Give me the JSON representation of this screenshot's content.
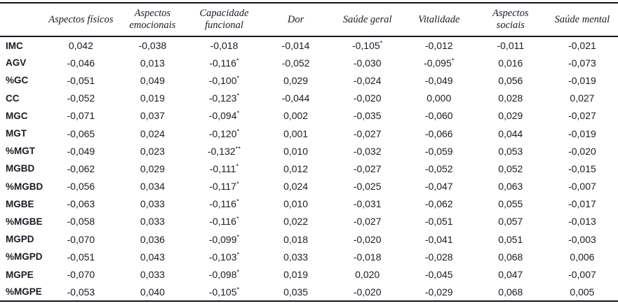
{
  "colors": {
    "text": "#1b1b26",
    "rule": "#15151f",
    "background": "#ffffff"
  },
  "table": {
    "corner_label": "",
    "columns": [
      "Aspectos físicos",
      "Aspectos emocionais",
      "Capacidade funcional",
      "Dor",
      "Saúde geral",
      "Vitalidade",
      "Aspectos sociais",
      "Saúde mental"
    ],
    "rows": [
      {
        "label": "IMC",
        "values": [
          "0,042",
          "-0,038",
          "-0,018",
          "-0,014",
          "-0,105*",
          "-0,012",
          "-0,011",
          "-0,021"
        ]
      },
      {
        "label": "AGV",
        "values": [
          "-0,046",
          "0,013",
          "-0,116*",
          "-0,052",
          "-0,030",
          "-0,095*",
          "0,016",
          "-0,073"
        ]
      },
      {
        "label": "%GC",
        "values": [
          "-0,051",
          "0,049",
          "-0,100*",
          "0,029",
          "-0,024",
          "-0,049",
          "0,056",
          "-0,019"
        ]
      },
      {
        "label": "CC",
        "values": [
          "-0,052",
          "0,019",
          "-0,123*",
          "-0,044",
          "-0,020",
          "0,000",
          "0,028",
          "0,027"
        ]
      },
      {
        "label": "MGC",
        "values": [
          "-0,071",
          "0,037",
          "-0,094*",
          "0,002",
          "-0,035",
          "-0,060",
          "0,029",
          "-0,027"
        ]
      },
      {
        "label": "MGT",
        "values": [
          "-0,065",
          "0,024",
          "-0,120*",
          "0,001",
          "-0,027",
          "-0,066",
          "0,044",
          "-0,019"
        ]
      },
      {
        "label": "%MGT",
        "values": [
          "-0,049",
          "0,023",
          "-0,132**",
          "0,010",
          "-0,032",
          "-0,059",
          "0,053",
          "-0,020"
        ]
      },
      {
        "label": "MGBD",
        "values": [
          "-0,062",
          "0,029",
          "-0,111*",
          "0,012",
          "-0,027",
          "-0,052",
          "0,052",
          "-0,015"
        ]
      },
      {
        "label": "%MGBD",
        "values": [
          "-0,056",
          "0,034",
          "-0,117*",
          "0,024",
          "-0,025",
          "-0,047",
          "0,063",
          "-0,007"
        ]
      },
      {
        "label": "MGBE",
        "values": [
          "-0,063",
          "0,033",
          "-0,116*",
          "0,010",
          "-0,031",
          "-0,062",
          "0,055",
          "-0,017"
        ]
      },
      {
        "label": "%MGBE",
        "values": [
          "-0,058",
          "0,033",
          "-0,116*",
          "0,022",
          "-0,027",
          "-0,051",
          "0,057",
          "-0,013"
        ]
      },
      {
        "label": "MGPD",
        "values": [
          "-0,070",
          "0,036",
          "-0,099*",
          "0,018",
          "-0,020",
          "-0,041",
          "0,051",
          "-0,003"
        ]
      },
      {
        "label": "%MGPD",
        "values": [
          "-0,051",
          "0,043",
          "-0,103*",
          "0,033",
          "-0,018",
          "-0,028",
          "0,068",
          "0,006"
        ]
      },
      {
        "label": "MGPE",
        "values": [
          "-0,070",
          "0,033",
          "-0,098*",
          "0,019",
          "0,020",
          "-0,045",
          "0,047",
          "-0,007"
        ]
      },
      {
        "label": "%MGPE",
        "values": [
          "-0,053",
          "0,040",
          "-0,105*",
          "0,035",
          "-0,020",
          "-0,029",
          "0,068",
          "0,005"
        ]
      }
    ]
  }
}
